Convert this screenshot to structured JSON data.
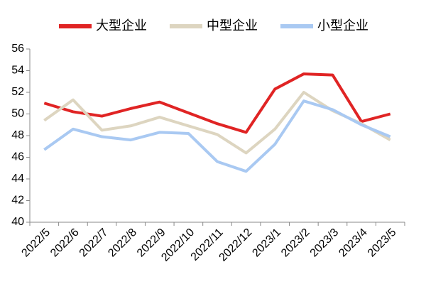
{
  "chart_data": {
    "type": "line",
    "categories": [
      "2022/5",
      "2022/6",
      "2022/7",
      "2022/8",
      "2022/9",
      "2022/10",
      "2022/11",
      "2022/12",
      "2023/1",
      "2023/2",
      "2023/3",
      "2023/4",
      "2023/5"
    ],
    "series": [
      {
        "name": "大型企业",
        "color": "#e02424",
        "values": [
          51.0,
          50.2,
          49.8,
          50.5,
          51.1,
          50.1,
          49.1,
          48.3,
          52.3,
          53.7,
          53.6,
          49.3,
          50.0
        ]
      },
      {
        "name": "中型企业",
        "color": "#ddd5c0",
        "values": [
          49.4,
          51.3,
          48.5,
          48.9,
          49.7,
          48.9,
          48.1,
          46.4,
          48.6,
          52.0,
          50.3,
          49.1,
          47.6
        ]
      },
      {
        "name": "小型企业",
        "color": "#a9c9f2",
        "values": [
          46.7,
          48.6,
          47.9,
          47.6,
          48.3,
          48.2,
          45.6,
          44.7,
          47.2,
          51.2,
          50.4,
          49.0,
          47.9
        ]
      }
    ],
    "ylim": [
      40,
      56
    ],
    "yticks": [
      40,
      42,
      44,
      46,
      48,
      50,
      52,
      54,
      56
    ],
    "grid": false
  }
}
